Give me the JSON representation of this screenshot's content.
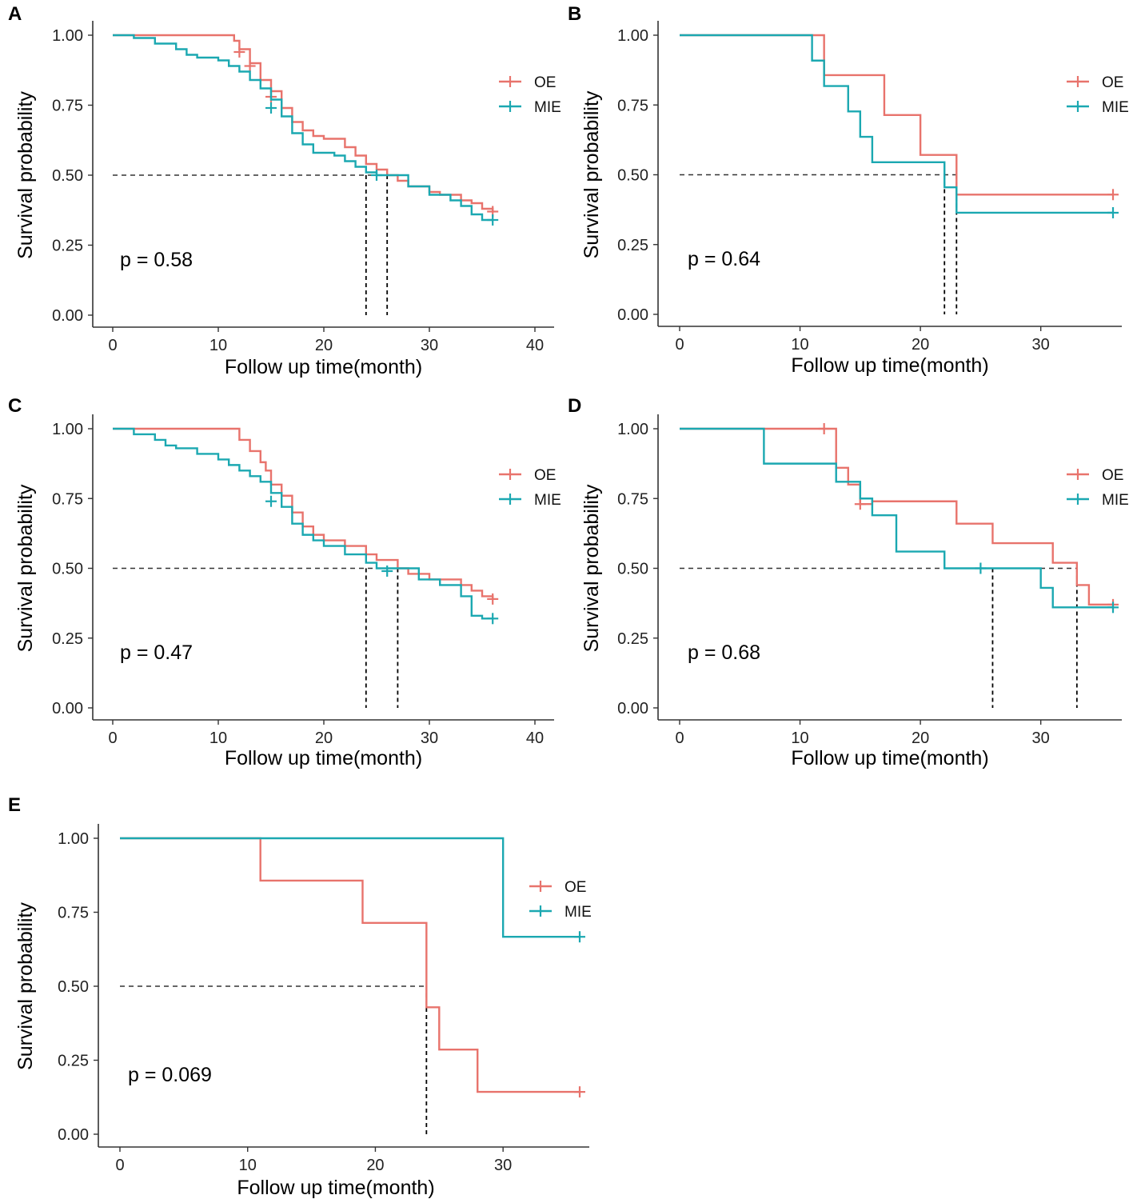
{
  "colors": {
    "OE": "#E8736C",
    "MIE": "#1BA8B1",
    "axis": "#333333",
    "median": "#000000"
  },
  "chart_data": [
    {
      "panel": "A",
      "type": "line",
      "xlabel": "Follow up time(month)",
      "ylabel": "Survival probability",
      "xlim": [
        0,
        40
      ],
      "xticks": [
        0,
        10,
        20,
        30,
        40
      ],
      "ylim": [
        0,
        1
      ],
      "yticks": [
        "0.00",
        "0.25",
        "0.50",
        "0.75",
        "1.00"
      ],
      "p_value": "p = 0.58",
      "legend": [
        "OE",
        "MIE"
      ],
      "legend_position": "right",
      "medians": [
        24,
        26
      ],
      "series": [
        {
          "name": "OE",
          "step": [
            [
              0,
              1
            ],
            [
              11.5,
              0.98
            ],
            [
              12,
              0.95
            ],
            [
              13,
              0.9
            ],
            [
              14,
              0.84
            ],
            [
              15,
              0.8
            ],
            [
              16,
              0.74
            ],
            [
              17,
              0.69
            ],
            [
              18,
              0.66
            ],
            [
              19,
              0.64
            ],
            [
              20,
              0.63
            ],
            [
              22,
              0.6
            ],
            [
              23,
              0.57
            ],
            [
              24,
              0.54
            ],
            [
              25,
              0.52
            ],
            [
              26,
              0.5
            ],
            [
              27,
              0.48
            ],
            [
              28,
              0.46
            ],
            [
              30,
              0.44
            ],
            [
              31,
              0.43
            ],
            [
              33,
              0.41
            ],
            [
              34,
              0.4
            ],
            [
              35,
              0.38
            ],
            [
              36,
              0.37
            ]
          ],
          "censor": [
            [
              12,
              0.94
            ],
            [
              13,
              0.89
            ],
            [
              15,
              0.78
            ],
            [
              36,
              0.37
            ]
          ]
        },
        {
          "name": "MIE",
          "step": [
            [
              0,
              1
            ],
            [
              2,
              0.99
            ],
            [
              4,
              0.97
            ],
            [
              6,
              0.95
            ],
            [
              7,
              0.93
            ],
            [
              8,
              0.92
            ],
            [
              10,
              0.91
            ],
            [
              11,
              0.89
            ],
            [
              12,
              0.87
            ],
            [
              13,
              0.84
            ],
            [
              14,
              0.81
            ],
            [
              15,
              0.77
            ],
            [
              16,
              0.71
            ],
            [
              17,
              0.65
            ],
            [
              18,
              0.61
            ],
            [
              19,
              0.58
            ],
            [
              21,
              0.57
            ],
            [
              22,
              0.55
            ],
            [
              23,
              0.53
            ],
            [
              24,
              0.51
            ],
            [
              25,
              0.5
            ],
            [
              28,
              0.46
            ],
            [
              30,
              0.43
            ],
            [
              32,
              0.41
            ],
            [
              33,
              0.39
            ],
            [
              34,
              0.36
            ],
            [
              35,
              0.34
            ],
            [
              36,
              0.34
            ]
          ],
          "censor": [
            [
              15,
              0.74
            ],
            [
              25,
              0.5
            ],
            [
              36,
              0.34
            ]
          ]
        }
      ]
    },
    {
      "panel": "B",
      "type": "line",
      "xlabel": "Follow up time(month)",
      "ylabel": "Survival probability",
      "xlim": [
        0,
        36
      ],
      "xticks": [
        0,
        10,
        20,
        30
      ],
      "ylim": [
        0,
        1
      ],
      "yticks": [
        "0.00",
        "0.25",
        "0.50",
        "0.75",
        "1.00"
      ],
      "p_value": "p = 0.64",
      "legend": [
        "OE",
        "MIE"
      ],
      "legend_position": "right",
      "medians": [
        22,
        23
      ],
      "series": [
        {
          "name": "OE",
          "step": [
            [
              0,
              1
            ],
            [
              12,
              0.857
            ],
            [
              17,
              0.714
            ],
            [
              20,
              0.571
            ],
            [
              23,
              0.429
            ],
            [
              36,
              0.429
            ]
          ],
          "censor": [
            [
              36,
              0.429
            ]
          ]
        },
        {
          "name": "MIE",
          "step": [
            [
              0,
              1
            ],
            [
              11,
              0.909
            ],
            [
              12,
              0.818
            ],
            [
              14,
              0.727
            ],
            [
              15,
              0.636
            ],
            [
              16,
              0.545
            ],
            [
              22,
              0.455
            ],
            [
              23,
              0.364
            ],
            [
              36,
              0.364
            ]
          ],
          "censor": [
            [
              36,
              0.364
            ]
          ]
        }
      ]
    },
    {
      "panel": "C",
      "type": "line",
      "xlabel": "Follow up time(month)",
      "ylabel": "Survival probability",
      "xlim": [
        0,
        40
      ],
      "xticks": [
        0,
        10,
        20,
        30,
        40
      ],
      "ylim": [
        0,
        1
      ],
      "yticks": [
        "0.00",
        "0.25",
        "0.50",
        "0.75",
        "1.00"
      ],
      "p_value": "p = 0.47",
      "legend": [
        "OE",
        "MIE"
      ],
      "legend_position": "right",
      "medians": [
        24,
        27
      ],
      "series": [
        {
          "name": "OE",
          "step": [
            [
              0,
              1
            ],
            [
              12,
              0.96
            ],
            [
              13,
              0.92
            ],
            [
              14,
              0.88
            ],
            [
              14.5,
              0.85
            ],
            [
              15,
              0.8
            ],
            [
              16,
              0.76
            ],
            [
              17,
              0.7
            ],
            [
              18,
              0.65
            ],
            [
              19,
              0.62
            ],
            [
              20,
              0.6
            ],
            [
              22,
              0.58
            ],
            [
              24,
              0.55
            ],
            [
              25,
              0.53
            ],
            [
              27,
              0.5
            ],
            [
              28,
              0.48
            ],
            [
              30,
              0.46
            ],
            [
              33,
              0.44
            ],
            [
              34,
              0.42
            ],
            [
              35,
              0.4
            ],
            [
              36,
              0.39
            ]
          ],
          "censor": [
            [
              36,
              0.39
            ]
          ]
        },
        {
          "name": "MIE",
          "step": [
            [
              0,
              1
            ],
            [
              2,
              0.98
            ],
            [
              4,
              0.96
            ],
            [
              5,
              0.94
            ],
            [
              6,
              0.93
            ],
            [
              8,
              0.91
            ],
            [
              10,
              0.89
            ],
            [
              11,
              0.87
            ],
            [
              12,
              0.85
            ],
            [
              13,
              0.83
            ],
            [
              14,
              0.81
            ],
            [
              15,
              0.77
            ],
            [
              16,
              0.72
            ],
            [
              17,
              0.66
            ],
            [
              18,
              0.62
            ],
            [
              19,
              0.6
            ],
            [
              20,
              0.58
            ],
            [
              22,
              0.55
            ],
            [
              24,
              0.52
            ],
            [
              25,
              0.5
            ],
            [
              29,
              0.46
            ],
            [
              31,
              0.44
            ],
            [
              33,
              0.4
            ],
            [
              34,
              0.33
            ],
            [
              35,
              0.32
            ],
            [
              36,
              0.32
            ]
          ],
          "censor": [
            [
              15,
              0.74
            ],
            [
              26,
              0.49
            ],
            [
              36,
              0.32
            ]
          ]
        }
      ]
    },
    {
      "panel": "D",
      "type": "line",
      "xlabel": "Follow up time(month)",
      "ylabel": "Survival probability",
      "xlim": [
        0,
        36
      ],
      "xticks": [
        0,
        10,
        20,
        30
      ],
      "ylim": [
        0,
        1
      ],
      "yticks": [
        "0.00",
        "0.25",
        "0.50",
        "0.75",
        "1.00"
      ],
      "p_value": "p = 0.68",
      "legend": [
        "OE",
        "MIE"
      ],
      "legend_position": "right",
      "medians": [
        26,
        33
      ],
      "series": [
        {
          "name": "OE",
          "step": [
            [
              0,
              1
            ],
            [
              13,
              0.86
            ],
            [
              14,
              0.8
            ],
            [
              15,
              0.73
            ],
            [
              16,
              0.74
            ],
            [
              23,
              0.66
            ],
            [
              26,
              0.59
            ],
            [
              31,
              0.52
            ],
            [
              33,
              0.44
            ],
            [
              34,
              0.37
            ],
            [
              36,
              0.37
            ]
          ],
          "censor": [
            [
              12,
              1
            ],
            [
              15,
              0.73
            ],
            [
              36,
              0.37
            ]
          ]
        },
        {
          "name": "MIE",
          "step": [
            [
              0,
              1
            ],
            [
              7,
              0.875
            ],
            [
              13,
              0.81
            ],
            [
              15,
              0.75
            ],
            [
              16,
              0.69
            ],
            [
              18,
              0.56
            ],
            [
              22,
              0.5
            ],
            [
              30,
              0.43
            ],
            [
              31,
              0.36
            ],
            [
              36,
              0.36
            ]
          ],
          "censor": [
            [
              25,
              0.5
            ],
            [
              36,
              0.36
            ]
          ]
        }
      ]
    },
    {
      "panel": "E",
      "type": "line",
      "xlabel": "Follow up time(month)",
      "ylabel": "Survival probability",
      "xlim": [
        0,
        36
      ],
      "xticks": [
        0,
        10,
        20,
        30
      ],
      "ylim": [
        0,
        1
      ],
      "yticks": [
        "0.00",
        "0.25",
        "0.50",
        "0.75",
        "1.00"
      ],
      "p_value": "p = 0.069",
      "legend": [
        "OE",
        "MIE"
      ],
      "legend_position": "right",
      "medians": [
        24
      ],
      "series": [
        {
          "name": "OE",
          "step": [
            [
              0,
              1
            ],
            [
              11,
              0.857
            ],
            [
              19,
              0.714
            ],
            [
              24,
              0.429
            ],
            [
              25,
              0.286
            ],
            [
              28,
              0.143
            ],
            [
              36,
              0.143
            ]
          ],
          "censor": [
            [
              36,
              0.143
            ]
          ]
        },
        {
          "name": "MIE",
          "step": [
            [
              0,
              1
            ],
            [
              30,
              0.667
            ],
            [
              36,
              0.667
            ]
          ],
          "censor": [
            [
              36,
              0.667
            ]
          ]
        }
      ]
    }
  ]
}
